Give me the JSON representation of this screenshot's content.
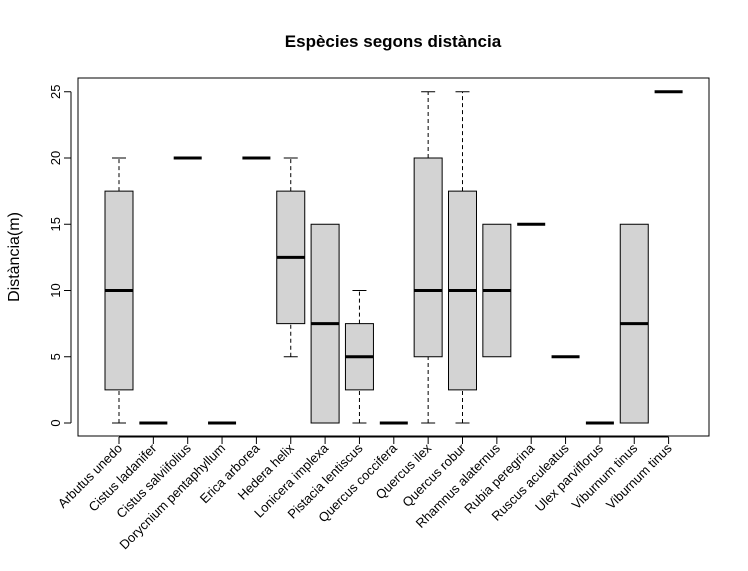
{
  "chart_data": {
    "type": "boxplot",
    "title": "Espècies segons distància",
    "xlabel": "",
    "ylabel": "Distància(m)",
    "ylim": [
      -1,
      26
    ],
    "yticks": [
      0,
      5,
      10,
      15,
      20,
      25
    ],
    "grid": false,
    "categories": [
      "Arbutus unedo",
      "Cistus ladanifer",
      "Cistus salviifolius",
      "Dorycnium pentaphyllum",
      "Erica arborea",
      "Hedera helix",
      "Lonicera implexa",
      "Pistacia lentiscus",
      "Quercus coccifera",
      "Quercus ilex",
      "Quercus robur",
      "Rhamnus alaternus",
      "Rubia peregrina",
      "Ruscus aculeatus",
      "Ulex parviflorus",
      "Viburnum tinus",
      "Viburnum tinus"
    ],
    "boxes": [
      {
        "min": 0,
        "q1": 2.5,
        "median": 10,
        "q3": 17.5,
        "max": 20
      },
      {
        "min": 0,
        "q1": 0,
        "median": 0,
        "q3": 0,
        "max": 0
      },
      {
        "min": 20,
        "q1": 20,
        "median": 20,
        "q3": 20,
        "max": 20
      },
      {
        "min": 0,
        "q1": 0,
        "median": 0,
        "q3": 0,
        "max": 0
      },
      {
        "min": 20,
        "q1": 20,
        "median": 20,
        "q3": 20,
        "max": 20
      },
      {
        "min": 5,
        "q1": 7.5,
        "median": 12.5,
        "q3": 17.5,
        "max": 20
      },
      {
        "min": 0,
        "q1": 0,
        "median": 7.5,
        "q3": 15,
        "max": 15
      },
      {
        "min": 0,
        "q1": 2.5,
        "median": 5,
        "q3": 7.5,
        "max": 10
      },
      {
        "min": 0,
        "q1": 0,
        "median": 0,
        "q3": 0,
        "max": 0
      },
      {
        "min": 0,
        "q1": 5,
        "median": 10,
        "q3": 20,
        "max": 25
      },
      {
        "min": 0,
        "q1": 2.5,
        "median": 10,
        "q3": 17.5,
        "max": 25
      },
      {
        "min": 5,
        "q1": 5,
        "median": 10,
        "q3": 15,
        "max": 15
      },
      {
        "min": 15,
        "q1": 15,
        "median": 15,
        "q3": 15,
        "max": 15
      },
      {
        "min": 5,
        "q1": 5,
        "median": 5,
        "q3": 5,
        "max": 5
      },
      {
        "min": 0,
        "q1": 0,
        "median": 0,
        "q3": 0,
        "max": 0
      },
      {
        "min": 0,
        "q1": 0,
        "median": 7.5,
        "q3": 15,
        "max": 15
      },
      {
        "min": 25,
        "q1": 25,
        "median": 25,
        "q3": 25,
        "max": 25
      }
    ],
    "box_fill": "#d3d3d3",
    "line_color": "#000000"
  }
}
